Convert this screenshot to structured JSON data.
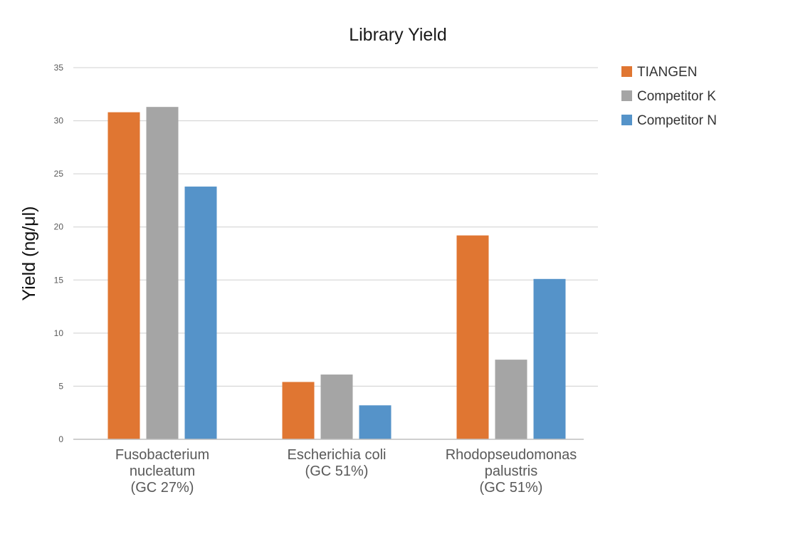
{
  "chart_data": {
    "type": "bar",
    "title": "Library Yield",
    "xlabel": "",
    "ylabel": "Yield (ng/μl)",
    "ylim": [
      0,
      35
    ],
    "yticks": [
      "0",
      "5",
      "10",
      "15",
      "20",
      "25",
      "30",
      "35"
    ],
    "ytick_values": [
      0,
      5,
      10,
      15,
      20,
      25,
      30,
      35
    ],
    "grid": true,
    "legend_position": "top-right",
    "categories": [
      [
        "Fusobacterium",
        "nucleatum",
        "(GC 27%)"
      ],
      [
        "Escherichia coli",
        "(GC 51%)"
      ],
      [
        "Rhodopseudomonas",
        "palustris",
        "(GC 51%)"
      ]
    ],
    "series": [
      {
        "name": "TIANGEN",
        "color": "#E07632",
        "values": [
          30.8,
          5.4,
          19.2
        ]
      },
      {
        "name": "Competitor K",
        "color": "#A5A5A5",
        "values": [
          31.3,
          6.1,
          7.5
        ]
      },
      {
        "name": "Competitor N",
        "color": "#5593C9",
        "values": [
          23.8,
          3.2,
          15.1
        ]
      }
    ]
  }
}
